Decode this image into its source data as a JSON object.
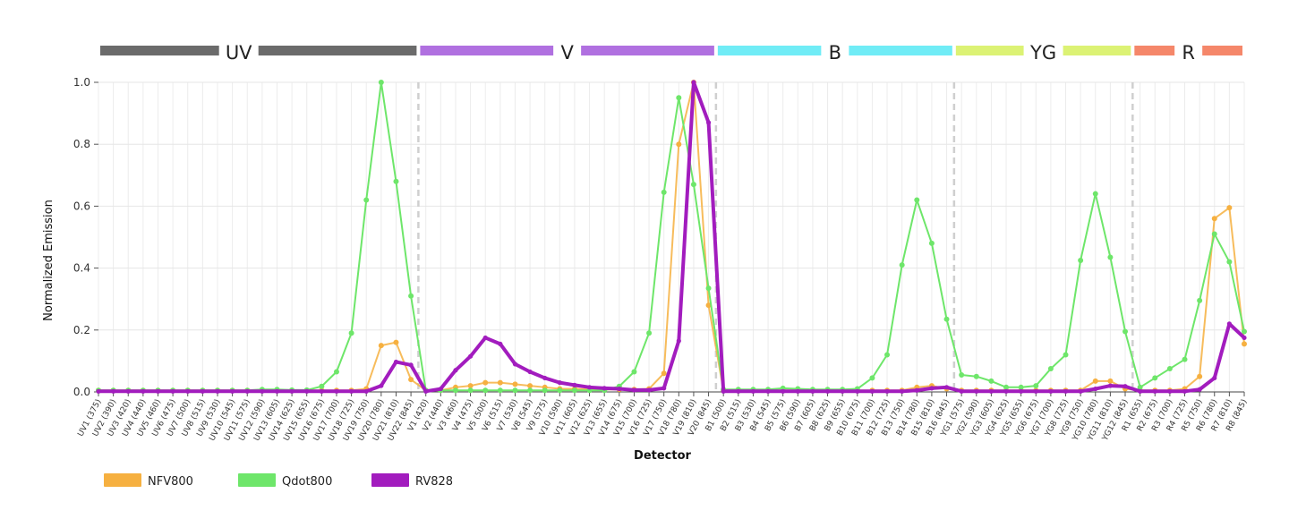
{
  "chart_data": {
    "type": "line",
    "xlabel": "Detector",
    "ylabel": "Normalized Emission",
    "ylim": [
      0,
      1.0
    ],
    "y_ticks": [
      "0.0",
      "0.2",
      "0.4",
      "0.6",
      "0.8",
      "1.0"
    ],
    "legend_position": "bottom-left",
    "groups": [
      {
        "label": "UV",
        "color": "#6b6b6b"
      },
      {
        "label": "V",
        "color": "#b070e0"
      },
      {
        "label": "B",
        "color": "#70ecf6"
      },
      {
        "label": "YG",
        "color": "#dcf274"
      },
      {
        "label": "R",
        "color": "#f5876a"
      }
    ],
    "categories": [
      "UV1 (375)",
      "UV2 (390)",
      "UV3 (420)",
      "UV4 (440)",
      "UV5 (460)",
      "UV6 (475)",
      "UV7 (500)",
      "UV8 (515)",
      "UV9 (530)",
      "UV10 (545)",
      "UV11 (575)",
      "UV12 (590)",
      "UV13 (605)",
      "UV14 (625)",
      "UV15 (655)",
      "UV16 (675)",
      "UV17 (700)",
      "UV18 (725)",
      "UV19 (750)",
      "UV20 (780)",
      "UV21 (810)",
      "UV22 (845)",
      "V1 (420)",
      "V2 (440)",
      "V3 (460)",
      "V4 (475)",
      "V5 (500)",
      "V6 (515)",
      "V7 (530)",
      "V8 (545)",
      "V9 (575)",
      "V10 (590)",
      "V11 (605)",
      "V12 (625)",
      "V13 (655)",
      "V14 (675)",
      "V15 (700)",
      "V16 (725)",
      "V17 (750)",
      "V18 (780)",
      "V19 (810)",
      "V20 (845)",
      "B1 (500)",
      "B2 (515)",
      "B3 (530)",
      "B4 (545)",
      "B5 (575)",
      "B6 (590)",
      "B7 (605)",
      "B8 (625)",
      "B9 (655)",
      "B10 (675)",
      "B11 (700)",
      "B12 (725)",
      "B13 (750)",
      "B14 (780)",
      "B15 (810)",
      "B16 (845)",
      "YG1 (575)",
      "YG2 (590)",
      "YG3 (605)",
      "YG4 (625)",
      "YG5 (655)",
      "YG6 (675)",
      "YG7 (700)",
      "YG8 (725)",
      "YG9 (750)",
      "YG10 (780)",
      "YG11 (810)",
      "YG12 (845)",
      "R1 (655)",
      "R2 (675)",
      "R3 (700)",
      "R4 (725)",
      "R5 (750)",
      "R6 (780)",
      "R7 (810)",
      "R8 (845)"
    ],
    "group_sizes": [
      22,
      20,
      16,
      12,
      8
    ],
    "series": [
      {
        "name": "NFV800",
        "color": "#f6b040",
        "stroke_width": 2,
        "values": [
          0.005,
          0.005,
          0.005,
          0.005,
          0.005,
          0.005,
          0.005,
          0.005,
          0.005,
          0.005,
          0.005,
          0.005,
          0.005,
          0.005,
          0.005,
          0.005,
          0.005,
          0.005,
          0.01,
          0.15,
          0.16,
          0.04,
          0.005,
          0.005,
          0.015,
          0.02,
          0.03,
          0.03,
          0.025,
          0.02,
          0.015,
          0.01,
          0.01,
          0.008,
          0.008,
          0.008,
          0.008,
          0.01,
          0.06,
          0.8,
          1.0,
          0.28,
          0.005,
          0.005,
          0.005,
          0.005,
          0.005,
          0.005,
          0.005,
          0.005,
          0.005,
          0.005,
          0.005,
          0.005,
          0.005,
          0.015,
          0.02,
          0.01,
          0.005,
          0.005,
          0.005,
          0.005,
          0.005,
          0.005,
          0.005,
          0.005,
          0.005,
          0.035,
          0.035,
          0.01,
          0.005,
          0.005,
          0.005,
          0.01,
          0.05,
          0.56,
          0.595,
          0.155
        ]
      },
      {
        "name": "Qdot800",
        "color": "#6ee66a",
        "stroke_width": 2,
        "values": [
          0.005,
          0.005,
          0.005,
          0.005,
          0.005,
          0.005,
          0.005,
          0.005,
          0.005,
          0.005,
          0.005,
          0.008,
          0.008,
          0.006,
          0.006,
          0.018,
          0.065,
          0.19,
          0.62,
          1.0,
          0.68,
          0.31,
          0.005,
          0.005,
          0.005,
          0.005,
          0.005,
          0.005,
          0.005,
          0.005,
          0.005,
          0.005,
          0.005,
          0.005,
          0.005,
          0.018,
          0.065,
          0.19,
          0.645,
          0.95,
          0.67,
          0.335,
          0.008,
          0.008,
          0.008,
          0.008,
          0.012,
          0.01,
          0.008,
          0.008,
          0.008,
          0.01,
          0.045,
          0.12,
          0.41,
          0.62,
          0.48,
          0.235,
          0.055,
          0.05,
          0.035,
          0.015,
          0.015,
          0.02,
          0.075,
          0.12,
          0.425,
          0.64,
          0.435,
          0.195,
          0.015,
          0.045,
          0.075,
          0.105,
          0.295,
          0.51,
          0.42,
          0.195
        ]
      },
      {
        "name": "RV828",
        "color": "#a21cbe",
        "stroke_width": 4,
        "values": [
          0.002,
          0.002,
          0.002,
          0.002,
          0.002,
          0.002,
          0.002,
          0.002,
          0.002,
          0.002,
          0.002,
          0.002,
          0.002,
          0.002,
          0.002,
          0.002,
          0.002,
          0.002,
          0.002,
          0.02,
          0.097,
          0.087,
          0.002,
          0.01,
          0.07,
          0.115,
          0.175,
          0.155,
          0.09,
          0.065,
          0.045,
          0.03,
          0.022,
          0.015,
          0.012,
          0.01,
          0.006,
          0.006,
          0.012,
          0.165,
          1.0,
          0.87,
          0.002,
          0.002,
          0.002,
          0.002,
          0.002,
          0.002,
          0.002,
          0.002,
          0.002,
          0.002,
          0.002,
          0.002,
          0.002,
          0.005,
          0.012,
          0.015,
          0.002,
          0.002,
          0.002,
          0.002,
          0.002,
          0.002,
          0.002,
          0.002,
          0.002,
          0.01,
          0.02,
          0.018,
          0.002,
          0.002,
          0.002,
          0.002,
          0.008,
          0.045,
          0.22,
          0.175
        ]
      }
    ]
  }
}
